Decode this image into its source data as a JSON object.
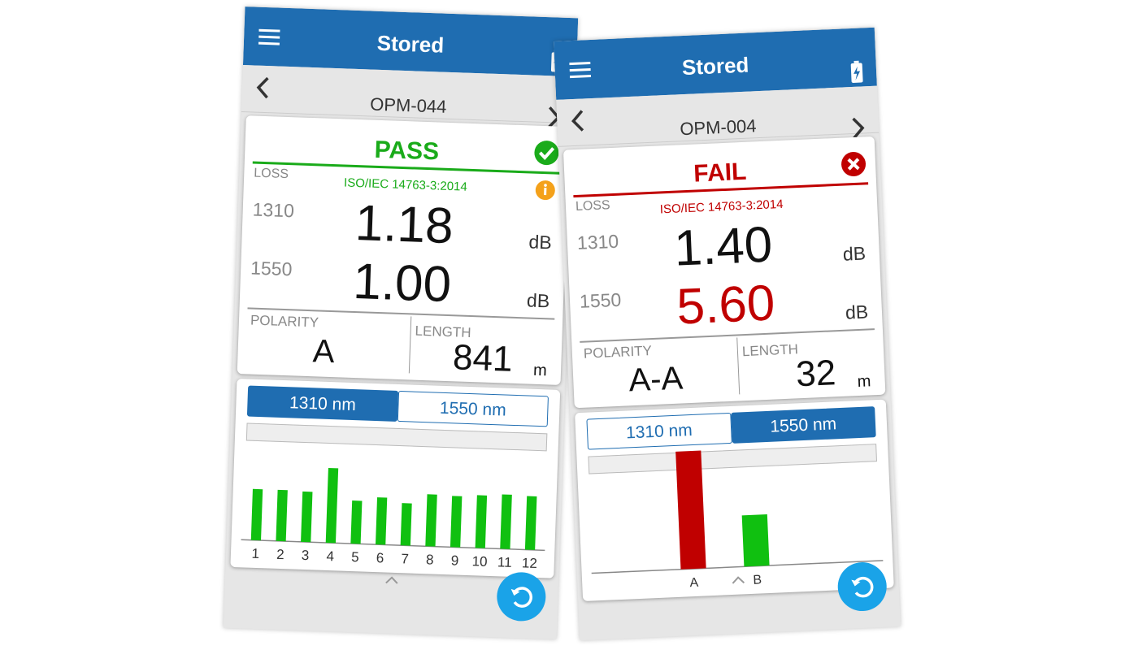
{
  "screens": [
    {
      "title": "Stored",
      "record": "OPM-044",
      "result": "PASS",
      "result_color": "#1aab1a",
      "result_icon": "check",
      "alert_icon": true,
      "standard": "ISO/IEC 14763-3:2014",
      "loss_label": "LOSS",
      "rows": [
        {
          "wavelength": "1310",
          "value": "1.18",
          "unit": "dB",
          "color": "#111111"
        },
        {
          "wavelength": "1550",
          "value": "1.00",
          "unit": "dB",
          "color": "#111111"
        }
      ],
      "polarity_label": "POLARITY",
      "polarity": "A",
      "length_label": "LENGTH",
      "length": "841",
      "length_unit": "m",
      "tabs": [
        "1310 nm",
        "1550 nm"
      ],
      "active_tab": 0,
      "chart_data": {
        "type": "bar",
        "categories": [
          "1",
          "2",
          "3",
          "4",
          "5",
          "6",
          "7",
          "8",
          "9",
          "10",
          "11",
          "12"
        ],
        "values": [
          63,
          63,
          62,
          92,
          53,
          58,
          52,
          64,
          63,
          65,
          67,
          66
        ],
        "color": "#10c010"
      }
    },
    {
      "title": "Stored",
      "record": "OPM-004",
      "result": "FAIL",
      "result_color": "#c00000",
      "result_icon": "cross",
      "alert_icon": false,
      "standard": "ISO/IEC 14763-3:2014",
      "loss_label": "LOSS",
      "rows": [
        {
          "wavelength": "1310",
          "value": "1.40",
          "unit": "dB",
          "color": "#111111"
        },
        {
          "wavelength": "1550",
          "value": "5.60",
          "unit": "dB",
          "color": "#c00000"
        }
      ],
      "polarity_label": "POLARITY",
      "polarity": "A-A",
      "length_label": "LENGTH",
      "length": "32",
      "length_unit": "m",
      "tabs": [
        "1310 nm",
        "1550 nm"
      ],
      "active_tab": 1,
      "chart_data": {
        "type": "bar",
        "categories": [
          "A",
          "B"
        ],
        "values": [
          145,
          63
        ],
        "colors": [
          "#c00000",
          "#10c010"
        ]
      }
    }
  ]
}
